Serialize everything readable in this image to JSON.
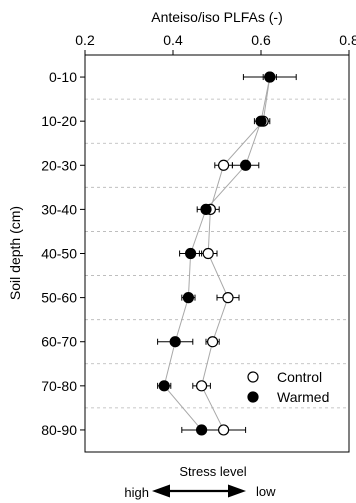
{
  "chart_data": {
    "type": "scatter",
    "orientation": "horizontal",
    "xlabel": "Anteiso/iso PLFAs (-)",
    "ylabel": "Soil depth (cm)",
    "xlim": [
      0.2,
      0.8
    ],
    "xticks": [
      "0.2",
      "0.4",
      "0.6",
      "0.8"
    ],
    "x_axis_position": "top",
    "grid": "dashed horizontal separators between depth classes",
    "categories": [
      "0-10",
      "10-20",
      "20-30",
      "30-40",
      "40-50",
      "50-60",
      "60-70",
      "70-80",
      "80-90"
    ],
    "legend_position": "bottom-right",
    "series": [
      {
        "name": "Control",
        "marker": "open-circle",
        "values": [
          0.62,
          0.605,
          0.515,
          0.485,
          0.48,
          0.525,
          0.49,
          0.465,
          0.515
        ],
        "errors": [
          0.06,
          0.015,
          0.02,
          0.02,
          0.02,
          0.025,
          0.015,
          0.02,
          0.05
        ]
      },
      {
        "name": "Warmed",
        "marker": "filled-circle",
        "values": [
          0.62,
          0.6,
          0.565,
          0.475,
          0.44,
          0.435,
          0.405,
          0.38,
          0.465
        ],
        "errors": [
          0.015,
          0.015,
          0.03,
          0.02,
          0.025,
          0.015,
          0.04,
          0.015,
          0.045
        ]
      }
    ],
    "annotation": {
      "title": "Stress level",
      "left_label": "high",
      "right_label": "low"
    }
  }
}
